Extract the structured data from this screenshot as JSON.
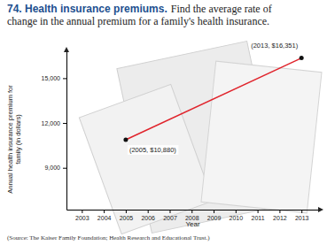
{
  "chart_data": {
    "type": "line",
    "title": "74. Health insurance premiums.",
    "subtitle": "Find the average rate of change in the annual premium for a family's health insurance.",
    "x_label": "Year",
    "y_label": "Annual health insurance premium for family (in dollars)",
    "source": "(Source: The Kaiser Family Foundation; Health Research and Educational Trust.)",
    "x": [
      2005,
      2013
    ],
    "values": [
      10880,
      16351
    ],
    "annotations": [
      "(2005, $10,880)",
      "(2013, $16,351)"
    ],
    "color": "#e0242c",
    "marker": "circle",
    "xlim": [
      2002.3,
      2013.8
    ],
    "ylim": [
      6200,
      16800
    ],
    "xticks": [
      2003,
      2004,
      2005,
      2006,
      2007,
      2008,
      2009,
      2010,
      2011,
      2012,
      2013
    ],
    "yticks": [
      {
        "value": 9000,
        "label": "9,000"
      },
      {
        "value": 12000,
        "label": "12,000"
      },
      {
        "value": 15000,
        "label": "15,000"
      }
    ],
    "grid": false
  }
}
